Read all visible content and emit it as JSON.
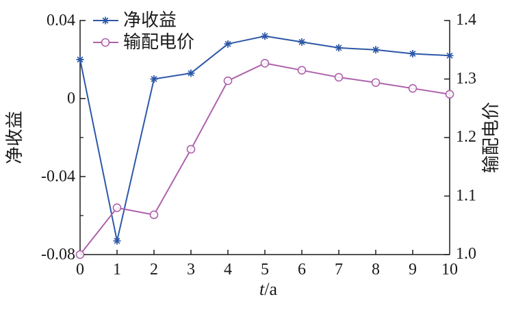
{
  "figure": {
    "background": "#ffffff",
    "text_color": "#1a1a1a",
    "axis_color": "#1a1a1a"
  },
  "chart_data": {
    "type": "line",
    "title": "",
    "x": [
      0,
      1,
      2,
      3,
      4,
      5,
      6,
      7,
      8,
      9,
      10
    ],
    "x_tick_labels": [
      "0",
      "1",
      "2",
      "3",
      "4",
      "5",
      "6",
      "7",
      "8",
      "9",
      "10"
    ],
    "xlabel": "t/a",
    "xlabel_var": "t",
    "xlabel_unit": "/a",
    "grid": false,
    "legend_position": "top-left-inside",
    "left_axis": {
      "label": "净收益",
      "min": -0.08,
      "max": 0.04,
      "tick_values": [
        0.04,
        0,
        -0.04,
        -0.08
      ],
      "tick_labels": [
        "0.04",
        "0",
        "-0.04",
        "-0.08"
      ],
      "minor_tick_values": [
        0.02,
        -0.02,
        -0.06
      ]
    },
    "right_axis": {
      "label": "输配电价",
      "min": 1.0,
      "max": 1.4,
      "tick_values": [
        1.4,
        1.3,
        1.2,
        1.1,
        1.0
      ],
      "tick_labels": [
        "1.4",
        "1.3",
        "1.2",
        "1.1",
        "1.0"
      ]
    },
    "series": [
      {
        "name": "净收益",
        "axis": "left",
        "color": "#2b57a7",
        "marker": "asterisk",
        "values": [
          0.02,
          -0.073,
          0.01,
          0.013,
          0.028,
          0.032,
          0.029,
          0.026,
          0.025,
          0.023,
          0.022
        ]
      },
      {
        "name": "输配电价",
        "axis": "right",
        "color": "#ad62ab",
        "marker": "circle",
        "values": [
          1.0,
          1.08,
          1.068,
          1.18,
          1.297,
          1.327,
          1.315,
          1.303,
          1.294,
          1.284,
          1.274
        ]
      }
    ]
  }
}
